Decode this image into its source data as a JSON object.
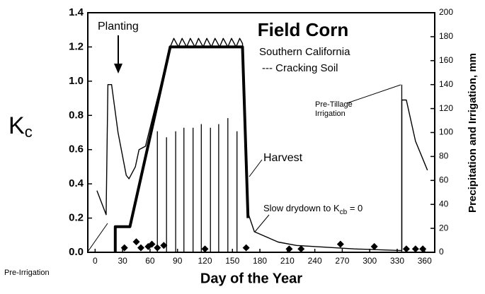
{
  "chart_data": {
    "type": "line",
    "title": "Field Corn",
    "subtitle": "Southern California",
    "subtitle2": "--- Cracking Soil",
    "xlabel": "Day of the Year",
    "ylabel": {
      "main": "K",
      "sub": "c"
    },
    "y2label": "Precipitation and Irrigation, mm",
    "annotations": {
      "planting": "Planting",
      "harvest": "Harvest",
      "pre_irrigation": "Pre-Irrigation",
      "pre_tillage": [
        "Pre-Tillage",
        "Irrigation"
      ],
      "drydown": {
        "main": "Slow drydown to K",
        "sub": "cb",
        "after": " = 0"
      }
    },
    "xlim": [
      -8,
      371
    ],
    "xticks": [
      0,
      30,
      60,
      90,
      120,
      150,
      180,
      210,
      240,
      270,
      300,
      330,
      360
    ],
    "ylim": [
      0,
      1.4
    ],
    "yticks": [
      {
        "value": 0,
        "label": "0.0"
      },
      0.2,
      0.4,
      0.6,
      0.8,
      {
        "value": 1,
        "label": "1.0"
      },
      1.2,
      1.4
    ],
    "y2lim": [
      0,
      200
    ],
    "y2ticks": [
      0,
      20,
      40,
      60,
      80,
      100,
      120,
      140,
      160,
      180,
      200
    ],
    "kcb_curve": {
      "color": "#000000",
      "x": [
        22,
        22,
        38,
        82,
        161,
        167
      ],
      "values": [
        0,
        0.15,
        0.15,
        1.2,
        1.2,
        0.2
      ]
    },
    "kc_curve": {
      "color": "#000000",
      "x": [
        2,
        12,
        14,
        18,
        25,
        34,
        37,
        44,
        48,
        55,
        82,
        86,
        91,
        95,
        100,
        104,
        109,
        113,
        118,
        122,
        127,
        131,
        136,
        140,
        145,
        149,
        154,
        158,
        161,
        167,
        174,
        200,
        220,
        283,
        335,
        335,
        340,
        350,
        363
      ],
      "values": [
        0.36,
        0.22,
        0.98,
        0.98,
        0.7,
        0.45,
        0.43,
        0.5,
        0.6,
        0.62,
        1.2,
        1.25,
        1.2,
        1.25,
        1.2,
        1.25,
        1.2,
        1.25,
        1.2,
        1.25,
        1.2,
        1.25,
        1.2,
        1.25,
        1.2,
        1.25,
        1.2,
        1.25,
        1.22,
        0.23,
        0.12,
        0.06,
        0.04,
        0.02,
        0.01,
        0.89,
        0.89,
        0.65,
        0.48
      ]
    },
    "irrigation": {
      "axis": "y2",
      "color": "#000000",
      "x": [
        68,
        78,
        88,
        97,
        107,
        116,
        126,
        135,
        145,
        155,
        335
      ],
      "values": [
        101,
        96,
        101,
        104,
        104,
        107,
        104,
        107,
        112,
        101,
        140
      ]
    },
    "precipitation": {
      "axis": "y2",
      "color": "#000000",
      "x": [
        32,
        45,
        50,
        58,
        62,
        68,
        75,
        120,
        165,
        212,
        225,
        268,
        305,
        340,
        350,
        358
      ],
      "values": [
        2,
        7,
        2,
        3,
        5,
        2,
        4,
        1,
        2,
        1,
        1,
        5,
        3,
        1,
        1,
        1
      ]
    }
  }
}
